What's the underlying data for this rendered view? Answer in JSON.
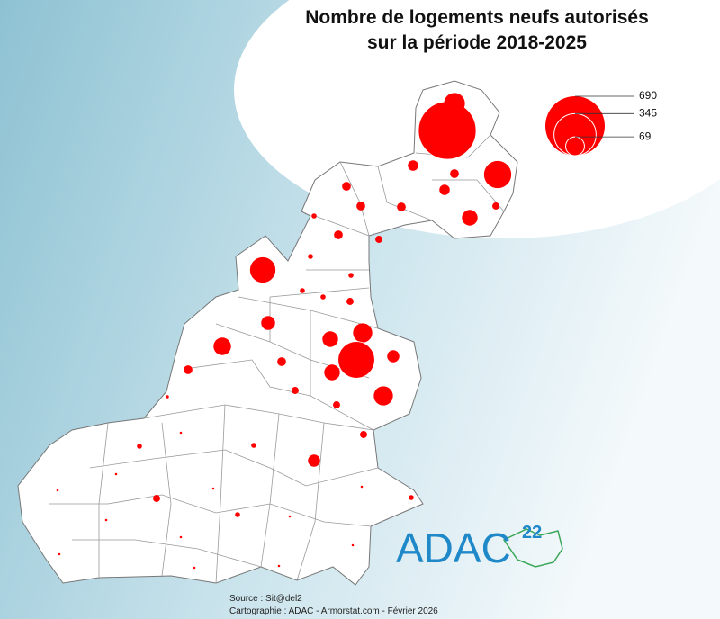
{
  "title": "Nombre de logements neufs autorisés\nsur la période 2018-2025",
  "legend": {
    "values": [
      690,
      345,
      69
    ],
    "value_labels": [
      "690",
      "345",
      "69"
    ]
  },
  "symbols": {
    "color": "#ff0000",
    "values": [
      650,
      86,
      153,
      21,
      15,
      21,
      48,
      15,
      15,
      15,
      10,
      5,
      15,
      10,
      134,
      5,
      5,
      5,
      5,
      10,
      38,
      60,
      48,
      72,
      263,
      48,
      29,
      15,
      15,
      72,
      10,
      10,
      2,
      10,
      5,
      5,
      29,
      10,
      5,
      5,
      1,
      1,
      1,
      1,
      1,
      1,
      1,
      1,
      1,
      1,
      1,
      1
    ]
  },
  "logo": {
    "name": "ADAC",
    "number": "22"
  },
  "source": "Source : Sit@del2",
  "credits": "Cartographie : ADAC - Armorstat.com - Février 2026"
}
